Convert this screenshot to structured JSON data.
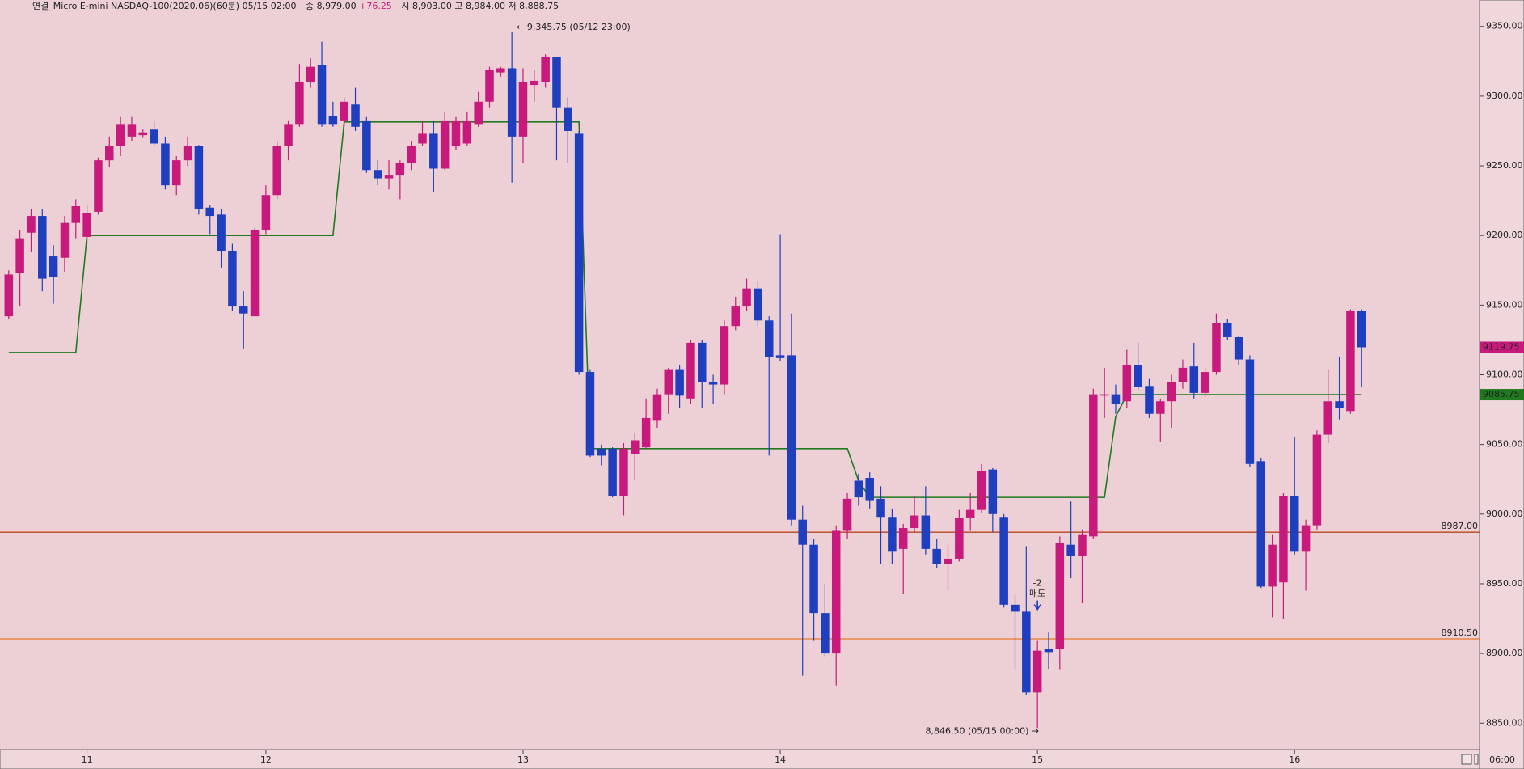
{
  "header": {
    "name": "연결_Micro E-mini NASDAQ-100(2020.06)(60분) 05/15 02:00",
    "close_text": "종 8,979.00",
    "change": "+76.25",
    "rest": "시 8,903.00 고 8,984.00 저 8,888.75",
    "time": "06:00"
  },
  "chart_data": {
    "type": "candlestick",
    "categories": [
      null,
      null,
      null,
      null,
      null,
      null,
      null,
      "11",
      null,
      null,
      null,
      null,
      null,
      null,
      null,
      null,
      null,
      null,
      null,
      null,
      null,
      null,
      null,
      "12",
      null,
      null,
      null,
      null,
      null,
      null,
      null,
      null,
      null,
      null,
      null,
      null,
      null,
      null,
      null,
      null,
      null,
      null,
      null,
      null,
      null,
      null,
      "13",
      null,
      null,
      null,
      null,
      null,
      null,
      null,
      null,
      null,
      null,
      null,
      null,
      null,
      null,
      null,
      null,
      null,
      null,
      null,
      null,
      null,
      null,
      "14",
      null,
      null,
      null,
      null,
      null,
      null,
      null,
      null,
      null,
      null,
      null,
      null,
      null,
      null,
      null,
      null,
      null,
      null,
      null,
      null,
      null,
      null,
      "15",
      null,
      null,
      null,
      null,
      null,
      null,
      null,
      null,
      null,
      null,
      null,
      null,
      null,
      null,
      null,
      null,
      null,
      null,
      null,
      null,
      null,
      null,
      "16",
      null,
      null,
      null,
      null,
      null,
      null
    ],
    "open": [
      9142,
      9173,
      9202,
      9214,
      9185,
      9184,
      9209,
      9199,
      9217,
      9254,
      9264,
      9271,
      9272,
      9276,
      9266,
      9236,
      9254,
      9264,
      9220,
      9215,
      9189,
      9149,
      9142,
      9204,
      9229,
      9264,
      9280,
      9310,
      9322,
      9286,
      9282,
      9294,
      9282,
      9247,
      9241,
      9243,
      9252,
      9266,
      9273,
      9248,
      9264,
      9266,
      9280,
      9296,
      9317,
      9320,
      9271,
      9308,
      9310,
      9328,
      9292,
      9273,
      9102,
      9047,
      9047,
      9013,
      9043,
      9048,
      9067,
      9086,
      9104,
      9083,
      9123,
      9095,
      9093,
      9135,
      9149,
      9162,
      9139,
      9114,
      9114,
      8996,
      8978,
      8929,
      8900,
      8988,
      9024,
      9026,
      9011,
      8998,
      8975,
      8990,
      8999,
      8975,
      8964,
      8968,
      8997,
      9003,
      9032,
      8998,
      8935,
      8930,
      8872,
      8903,
      8903,
      8978,
      8970,
      8984,
      9085,
      9086,
      9081,
      9107,
      9092,
      9072,
      9081,
      9095,
      9106,
      9087,
      9102,
      9137,
      9127,
      9111,
      9038,
      8948,
      8951,
      9013,
      8973,
      8992,
      9057,
      9081,
      9074,
      9146
    ],
    "high": [
      9175,
      9204,
      9219,
      9219,
      9193,
      9214,
      9226,
      9222,
      9256,
      9271,
      9285,
      9285,
      9276,
      9282,
      9271,
      9257,
      9271,
      9265,
      9222,
      9219,
      9194,
      9160,
      9205,
      9236,
      9268,
      9282,
      9323,
      9327,
      9339,
      9296,
      9299,
      9306,
      9285,
      9254,
      9254,
      9254,
      9268,
      9282,
      9282,
      9289,
      9285,
      9289,
      9303,
      9321,
      9321,
      9345.75,
      9320,
      9319,
      9330,
      9328,
      9299,
      9275,
      9104,
      9050,
      9048,
      9051,
      9058,
      9083,
      9090,
      9105,
      9107,
      9125,
      9125,
      9100,
      9139,
      9156,
      9169,
      9167,
      9142,
      9201,
      9144,
      9006,
      8982,
      8950,
      8992,
      9015,
      9029,
      9030,
      9020,
      9004,
      8993,
      9013,
      9020,
      8982,
      8978,
      9003,
      9015,
      9036,
      9033,
      9000,
      8942,
      8977,
      8909,
      8915,
      8984,
      9009,
      8989,
      9090,
      9105,
      9093,
      9118,
      9123,
      9097,
      9083,
      9100,
      9111,
      9123,
      9105,
      9144,
      9140,
      9128,
      9114,
      9040,
      8985,
      9015,
      9055,
      8996,
      9060,
      9104,
      9113,
      9147,
      9147
    ],
    "low": [
      9140,
      9149,
      9188,
      9160,
      9151,
      9174,
      9198,
      9194,
      9215,
      9249,
      9257,
      9268,
      9270,
      9264,
      9233,
      9229,
      9250,
      9215,
      9201,
      9177,
      9146,
      9119,
      9142,
      9201,
      9226,
      9254,
      9278,
      9306,
      9278,
      9278,
      9278,
      9275,
      9245,
      9236,
      9233,
      9226,
      9247,
      9264,
      9231,
      9247,
      9261,
      9264,
      9278,
      9292,
      9314,
      9238,
      9252,
      9296,
      9306,
      9254,
      9252,
      9100,
      9041,
      9035,
      9012,
      8999,
      9024,
      9047,
      9062,
      9072,
      9076,
      9079,
      9076,
      9079,
      9086,
      9132,
      9146,
      9135,
      9042,
      9110,
      8992,
      8884,
      8909,
      8898,
      8877,
      8982,
      9006,
      9004,
      8964,
      8964,
      8943,
      8987,
      8971,
      8961,
      8945,
      8966,
      8988,
      9001,
      8987,
      8933,
      8889,
      8870,
      8846.5,
      8889,
      8888.75,
      8954,
      8936,
      8982,
      9069,
      9072,
      9076,
      9089,
      9069,
      9052,
      9062,
      9090,
      9083,
      9084,
      9100,
      9125,
      9107,
      9034,
      8947,
      8926,
      8925,
      8971,
      8945,
      8989,
      9051,
      9068,
      9072,
      9091
    ],
    "close": [
      9172,
      9198,
      9214,
      9169,
      9170,
      9209,
      9221,
      9216,
      9254,
      9264,
      9280,
      9280,
      9274,
      9266,
      9236,
      9254,
      9264,
      9219,
      9214,
      9189,
      9149,
      9144,
      9204,
      9229,
      9264,
      9280,
      9310,
      9321,
      9280,
      9280,
      9296,
      9278,
      9247,
      9241,
      9243,
      9252,
      9264,
      9273,
      9248,
      9282,
      9282,
      9282,
      9296,
      9319,
      9320,
      9271,
      9310,
      9311,
      9328,
      9292,
      9275,
      9102,
      9042,
      9042,
      9013,
      9047,
      9053,
      9069,
      9086,
      9104,
      9085,
      9123,
      9095,
      9093,
      9135,
      9149,
      9162,
      9139,
      9113,
      9112,
      8996,
      8978,
      8929,
      8900,
      8988,
      9011,
      9012,
      9010,
      8998,
      8973,
      8990,
      8999,
      8975,
      8964,
      8968,
      8997,
      9003,
      9031,
      9000,
      8935,
      8930,
      8872,
      8902,
      8901,
      8979,
      8970,
      8985,
      9086,
      9086,
      9079,
      9107,
      9091,
      9072,
      9081,
      9095,
      9105,
      9087,
      9102,
      9137,
      9127,
      9111,
      9036,
      8948,
      8978,
      9013,
      8973,
      8992,
      9057,
      9081,
      9076,
      9146,
      9119.75
    ],
    "close_label": "9119.75",
    "up_color": "#c81a7c",
    "down_color": "#1f3fbf",
    "line": {
      "color": "#1f7a1f",
      "label": "9085.75",
      "values": [
        9116,
        9116,
        9116,
        9116,
        9116,
        9116,
        9116,
        9200,
        9200,
        9200,
        9200,
        9200,
        9200,
        9200,
        9200,
        9200,
        9200,
        9200,
        9200,
        9200,
        9200,
        9200,
        9200,
        9200,
        9200,
        9200,
        9200,
        9200,
        9200,
        9200,
        9281.5,
        9281.5,
        9281.5,
        9281.5,
        9281.5,
        9281.5,
        9281.5,
        9281.5,
        9281.5,
        9281.5,
        9281.5,
        9281.5,
        9281.5,
        9281.5,
        9281.5,
        9281.5,
        9281.5,
        9281.5,
        9281.5,
        9281.5,
        9281.5,
        9281.5,
        9047,
        9047,
        9047,
        9047,
        9047,
        9047,
        9047,
        9047,
        9047,
        9047,
        9047,
        9047,
        9047,
        9047,
        9047,
        9047,
        9047,
        9047,
        9047,
        9047,
        9047,
        9047,
        9047,
        9047,
        9024,
        9012,
        9012,
        9012,
        9012,
        9012,
        9012,
        9012,
        9012,
        9012,
        9012,
        9012,
        9012,
        9012,
        9012,
        9012,
        9012,
        9012,
        9012,
        9012,
        9012,
        9012,
        9012,
        9070,
        9085.75,
        9085.75,
        9085.75,
        9085.75,
        9085.75,
        9085.75,
        9085.75,
        9085.75,
        9085.75,
        9085.75,
        9085.75,
        9085.75,
        9085.75,
        9085.75,
        9085.75,
        9085.75,
        9085.75,
        9085.75,
        9085.75,
        9085.75,
        9085.75,
        9085.75
      ]
    },
    "hlines": [
      {
        "value": 8987,
        "label": "8987.00",
        "color": "#b8461e"
      },
      {
        "value": 8910.5,
        "label": "8910.50",
        "color": "#e8782a"
      }
    ],
    "annotations": {
      "high": "← 9,345.75 (05/12 23:00)",
      "high_color": "#c81a7c",
      "low": "8,846.50 (05/15 00:00) →",
      "low_color": "#2a3fbf"
    },
    "signal": {
      "qty": -2,
      "label": "매도"
    },
    "ylim": [
      8831,
      9369
    ],
    "yticks": [
      {
        "value": 8850,
        "label": "8850.00"
      },
      {
        "value": 8900,
        "label": "8900.00"
      },
      {
        "value": 8950,
        "label": "8950.00"
      },
      {
        "value": 9000,
        "label": "9000.00"
      },
      {
        "value": 9050,
        "label": "9050.00"
      },
      {
        "value": 9100,
        "label": "9100.00"
      },
      {
        "value": 9150,
        "label": "9150.00"
      },
      {
        "value": 9200,
        "label": "9200.00"
      },
      {
        "value": 9250,
        "label": "9250.00"
      },
      {
        "value": 9300,
        "label": "9300.00"
      },
      {
        "value": 9350,
        "label": "9350.00"
      }
    ]
  }
}
